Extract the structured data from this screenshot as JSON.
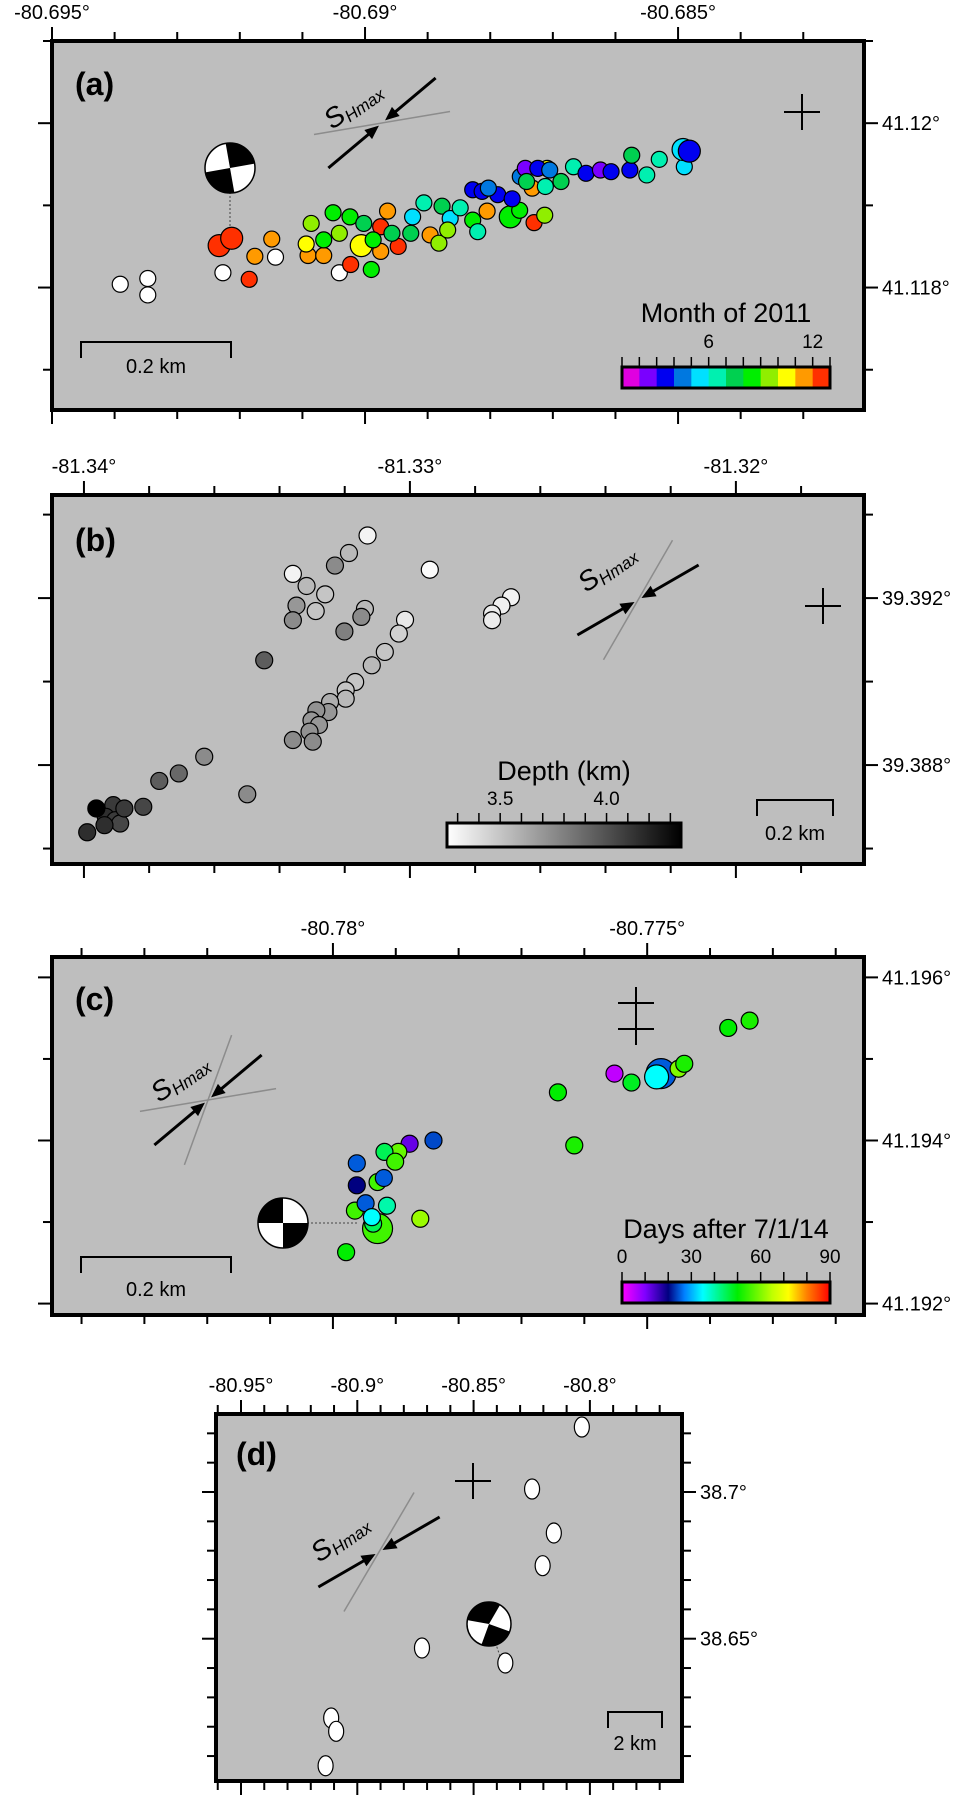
{
  "chart_data": [
    {
      "type": "scatter",
      "panel_label": "(a)",
      "xlim": [
        -80.695,
        -80.68203
      ],
      "ylim": [
        41.11651,
        41.121
      ],
      "x_ticks": {
        "major": [
          -80.695,
          -80.69,
          -80.685
        ],
        "labels": [
          "-80.695°",
          "-80.69°",
          "-80.685°"
        ],
        "minor_step": 0.001
      },
      "y_ticks": {
        "major": [
          41.12,
          41.118
        ],
        "labels": [
          "41.12°",
          "41.118°"
        ],
        "minor_step": 0.001
      },
      "color_by": "month",
      "colorbar": {
        "title": "Month of 2011",
        "range": [
          1,
          13
        ],
        "tick_values": [
          6,
          12
        ],
        "tick_labels": [
          "6",
          "12"
        ],
        "minor_step": 1,
        "segments": [
          "#e000e0",
          "#7a00ff",
          "#0000f0",
          "#0078e0",
          "#00e0ff",
          "#00f0b0",
          "#00d050",
          "#00ee00",
          "#90ee00",
          "#ffff00",
          "#ff9a00",
          "#ff3000"
        ]
      },
      "unassigned_color": "#ffffff",
      "scale_bar": "0.2 km",
      "shmax": {
        "main": "S",
        "sub": "Hmax"
      },
      "points": [
        [
          -80.69391,
          41.11804,
          null,
          0
        ],
        [
          -80.69347,
          41.11811,
          null,
          0
        ],
        [
          -80.69347,
          41.11791,
          null,
          0
        ],
        [
          -80.69227,
          41.11818,
          null,
          0
        ],
        [
          -80.69041,
          41.11818,
          null,
          0
        ],
        [
          -80.69143,
          41.11837,
          null,
          0
        ],
        [
          -80.69233,
          41.11851,
          12,
          1
        ],
        [
          -80.69213,
          41.1186,
          12,
          1
        ],
        [
          -80.69185,
          41.1181,
          12,
          0
        ],
        [
          -80.6873,
          41.11879,
          12,
          0
        ],
        [
          -80.69023,
          41.11828,
          12,
          0
        ],
        [
          -80.68975,
          41.11874,
          12,
          0
        ],
        [
          -80.68947,
          41.1185,
          12,
          0
        ],
        [
          -80.69149,
          41.11859,
          11,
          0
        ],
        [
          -80.69176,
          41.11838,
          11,
          0
        ],
        [
          -80.69091,
          41.11839,
          11,
          0
        ],
        [
          -80.69066,
          41.11839,
          11,
          0
        ],
        [
          -80.68964,
          41.11893,
          11,
          0
        ],
        [
          -80.68975,
          41.11844,
          11,
          0
        ],
        [
          -80.68896,
          41.11864,
          11,
          0
        ],
        [
          -80.68805,
          41.11893,
          11,
          0
        ],
        [
          -80.68733,
          41.11921,
          11,
          0
        ],
        [
          -80.69094,
          41.11853,
          10,
          0
        ],
        [
          -80.69006,
          41.11851,
          10,
          1
        ],
        [
          -80.68709,
          41.11945,
          10,
          0
        ],
        [
          -80.69051,
          41.11891,
          8,
          0
        ],
        [
          -80.69024,
          41.11886,
          8,
          0
        ],
        [
          -80.69086,
          41.11878,
          9,
          0
        ],
        [
          -80.69041,
          41.11866,
          9,
          0
        ],
        [
          -80.6899,
          41.11822,
          8,
          0
        ],
        [
          -80.69066,
          41.11858,
          8,
          0
        ],
        [
          -80.68927,
          41.11866,
          7,
          0
        ],
        [
          -80.68882,
          41.11854,
          9,
          0
        ],
        [
          -80.69002,
          41.11878,
          7,
          0
        ],
        [
          -80.68906,
          41.11903,
          6,
          0
        ],
        [
          -80.68924,
          41.11886,
          5,
          0
        ],
        [
          -80.68877,
          41.11899,
          7,
          0
        ],
        [
          -80.68864,
          41.11884,
          5,
          0
        ],
        [
          -80.68848,
          41.11897,
          6,
          0
        ],
        [
          -80.68828,
          41.11882,
          8,
          0
        ],
        [
          -80.6882,
          41.11868,
          6,
          0
        ],
        [
          -80.68768,
          41.11886,
          8,
          1
        ],
        [
          -80.68753,
          41.11894,
          8,
          0
        ],
        [
          -80.68713,
          41.11888,
          9,
          0
        ],
        [
          -80.68828,
          41.11919,
          3,
          0
        ],
        [
          -80.68813,
          41.11917,
          3,
          0
        ],
        [
          -80.68788,
          41.11913,
          3,
          0
        ],
        [
          -80.68765,
          41.11908,
          3,
          0
        ],
        [
          -80.68803,
          41.11921,
          4,
          0
        ],
        [
          -80.68752,
          41.11935,
          4,
          0
        ],
        [
          -80.68744,
          41.11945,
          2,
          0
        ],
        [
          -80.68724,
          41.11945,
          3,
          0
        ],
        [
          -80.68705,
          41.11943,
          4,
          0
        ],
        [
          -80.68687,
          41.11929,
          7,
          0
        ],
        [
          -80.68712,
          41.11923,
          6,
          0
        ],
        [
          -80.68742,
          41.11929,
          7,
          0
        ],
        [
          -80.68667,
          41.11947,
          6,
          0
        ],
        [
          -80.68647,
          41.11939,
          3,
          0
        ],
        [
          -80.68624,
          41.11943,
          2,
          0
        ],
        [
          -80.68607,
          41.11941,
          3,
          0
        ],
        [
          -80.68577,
          41.11943,
          3,
          0
        ],
        [
          -80.6855,
          41.11937,
          6,
          0
        ],
        [
          -80.68574,
          41.11961,
          7,
          0
        ],
        [
          -80.6853,
          41.11956,
          6,
          0
        ],
        [
          -80.6849,
          41.11947,
          5,
          0
        ],
        [
          -80.68492,
          41.11968,
          5,
          1
        ],
        [
          -80.68482,
          41.11966,
          3,
          1
        ],
        [
          -80.68957,
          41.11866,
          7,
          0
        ],
        [
          -80.68987,
          41.11858,
          8,
          0
        ],
        [
          -80.68868,
          41.1187,
          9,
          0
        ]
      ]
    },
    {
      "type": "scatter",
      "panel_label": "(b)",
      "xlim": [
        -81.34098,
        -81.31607
      ],
      "ylim": [
        39.38563,
        39.39447
      ],
      "x_ticks": {
        "major": [
          -81.34,
          -81.33,
          -81.32
        ],
        "labels": [
          "-81.34°",
          "-81.33°",
          "-81.32°"
        ],
        "minor_step": 0.002
      },
      "y_ticks": {
        "major": [
          39.392,
          39.388
        ],
        "labels": [
          "39.392°",
          "39.388°"
        ],
        "minor_step": 0.002
      },
      "color_by": "depth_km",
      "colorbar": {
        "title": "Depth (km)",
        "range": [
          3.25,
          4.35
        ],
        "tick_values": [
          3.5,
          4.0
        ],
        "tick_labels": [
          "3.5",
          "4.0"
        ],
        "minor_step": 0.1,
        "gradient": [
          "#ffffff",
          "#000000"
        ]
      },
      "scale_bar": "0.2 km",
      "shmax": {
        "main": "S",
        "sub": "Hmax"
      },
      "points": [
        [
          -81.3313,
          39.3935,
          3.3
        ],
        [
          -81.33359,
          39.39258,
          3.3
        ],
        [
          -81.32939,
          39.39268,
          3.27
        ],
        [
          -81.3269,
          39.39202,
          3.3
        ],
        [
          -81.32719,
          39.39182,
          3.32
        ],
        [
          -81.32748,
          39.39163,
          3.33
        ],
        [
          -81.32748,
          39.39147,
          3.33
        ],
        [
          -81.33015,
          39.39148,
          3.35
        ],
        [
          -81.33187,
          39.39308,
          3.55
        ],
        [
          -81.33317,
          39.39229,
          3.55
        ],
        [
          -81.3326,
          39.39209,
          3.5
        ],
        [
          -81.33138,
          39.39174,
          3.55
        ],
        [
          -81.33289,
          39.39169,
          3.5
        ],
        [
          -81.33034,
          39.39115,
          3.45
        ],
        [
          -81.33077,
          39.39071,
          3.5
        ],
        [
          -81.33117,
          39.39039,
          3.55
        ],
        [
          -81.33168,
          39.38999,
          3.5
        ],
        [
          -81.33197,
          39.38979,
          3.5
        ],
        [
          -81.33197,
          39.38959,
          3.55
        ],
        [
          -81.33245,
          39.38951,
          3.6
        ],
        [
          -81.3323,
          39.39278,
          3.75
        ],
        [
          -81.33348,
          39.39182,
          3.7
        ],
        [
          -81.33359,
          39.39147,
          3.75
        ],
        [
          -81.33149,
          39.39155,
          3.75
        ],
        [
          -81.33201,
          39.3912,
          3.8
        ],
        [
          -81.3325,
          39.38927,
          3.7
        ],
        [
          -81.33287,
          39.38931,
          3.72
        ],
        [
          -81.33302,
          39.38907,
          3.7
        ],
        [
          -81.33279,
          39.38896,
          3.7
        ],
        [
          -81.33308,
          39.3888,
          3.72
        ],
        [
          -81.33359,
          39.3886,
          3.75
        ],
        [
          -81.33298,
          39.38856,
          3.75
        ],
        [
          -81.33499,
          39.3873,
          3.75
        ],
        [
          -81.33631,
          39.3882,
          3.75
        ],
        [
          -81.33447,
          39.39051,
          3.95
        ],
        [
          -81.33709,
          39.3878,
          3.9
        ],
        [
          -81.33769,
          39.38762,
          3.95
        ],
        [
          -81.33818,
          39.387,
          4.05
        ],
        [
          -81.3391,
          39.38704,
          4.1
        ],
        [
          -81.33933,
          39.38676,
          4.15
        ],
        [
          -81.33904,
          39.38668,
          4.1
        ],
        [
          -81.33889,
          39.3866,
          4.05
        ],
        [
          -81.3399,
          39.38639,
          4.15
        ],
        [
          -81.33876,
          39.38696,
          4.1
        ],
        [
          -81.33937,
          39.38656,
          4.15
        ],
        [
          -81.33962,
          39.38696,
          4.35
        ]
      ]
    },
    {
      "type": "scatter",
      "panel_label": "(c)",
      "xlim": [
        -80.78447,
        -80.77155
      ],
      "ylim": [
        41.19186,
        41.19625
      ],
      "x_ticks": {
        "major": [
          -80.78,
          -80.775
        ],
        "labels": [
          "-80.78°",
          "-80.775°"
        ],
        "minor_step": 0.001
      },
      "y_ticks": {
        "major": [
          41.196,
          41.194,
          41.192
        ],
        "labels": [
          "41.196°",
          "41.194°",
          "41.192°"
        ],
        "minor_step": 0.001
      },
      "color_by": "days_after_2014-07-01",
      "colorbar": {
        "title": "Days after 7/1/14",
        "range": [
          0,
          90
        ],
        "tick_values": [
          0,
          30,
          60,
          90
        ],
        "tick_labels": [
          "0",
          "30",
          "60",
          "90"
        ],
        "minor_step": 10,
        "stops": [
          [
            0,
            "#ff00ff"
          ],
          [
            10,
            "#8000ff"
          ],
          [
            20,
            "#000080"
          ],
          [
            27,
            "#0080ff"
          ],
          [
            35,
            "#00ffff"
          ],
          [
            50,
            "#00ee00"
          ],
          [
            65,
            "#c0ff00"
          ],
          [
            72,
            "#ffff00"
          ],
          [
            80,
            "#ff8000"
          ],
          [
            90,
            "#ff0000"
          ]
        ]
      },
      "scale_bar": "0.2 km",
      "shmax": {
        "main": "S",
        "sub": "Hmax"
      },
      "points": [
        [
          -80.77552,
          41.19482,
          5,
          0
        ],
        [
          -80.77525,
          41.19471,
          48,
          0
        ],
        [
          -80.77478,
          41.19482,
          25,
          2
        ],
        [
          -80.77485,
          41.19478,
          35,
          1
        ],
        [
          -80.7745,
          41.19488,
          60,
          0
        ],
        [
          -80.77441,
          41.19494,
          52,
          0
        ],
        [
          -80.77642,
          41.19459,
          50,
          0
        ],
        [
          -80.77616,
          41.19394,
          52,
          0
        ],
        [
          -80.77371,
          41.19538,
          50,
          0
        ],
        [
          -80.77337,
          41.19547,
          52,
          0
        ],
        [
          -80.7784,
          41.194,
          24,
          0
        ],
        [
          -80.77878,
          41.19396,
          12,
          0
        ],
        [
          -80.77896,
          41.19386,
          58,
          0
        ],
        [
          -80.77918,
          41.19386,
          45,
          0
        ],
        [
          -80.77901,
          41.19374,
          55,
          0
        ],
        [
          -80.77962,
          41.19372,
          25,
          0
        ],
        [
          -80.77929,
          41.19349,
          55,
          0
        ],
        [
          -80.77919,
          41.19354,
          25,
          0
        ],
        [
          -80.77962,
          41.19345,
          20,
          0
        ],
        [
          -80.77965,
          41.19314,
          55,
          0
        ],
        [
          -80.77914,
          41.1932,
          40,
          0
        ],
        [
          -80.77929,
          41.19292,
          55,
          2
        ],
        [
          -80.77936,
          41.19298,
          45,
          0
        ],
        [
          -80.77948,
          41.19323,
          25,
          0
        ],
        [
          -80.77938,
          41.19306,
          35,
          0
        ],
        [
          -80.77861,
          41.19304,
          62,
          0
        ],
        [
          -80.77979,
          41.19263,
          50,
          0
        ]
      ]
    },
    {
      "type": "scatter",
      "panel_label": "(d)",
      "xlim": [
        -80.96075,
        -80.7604
      ],
      "ylim": [
        38.6015,
        38.72659
      ],
      "x_ticks": {
        "major": [
          -80.95,
          -80.9,
          -80.85,
          -80.8
        ],
        "labels": [
          "-80.95°",
          "-80.9°",
          "-80.85°",
          "-80.8°"
        ],
        "minor_step": 0.01
      },
      "y_ticks": {
        "major": [
          38.7,
          38.65
        ],
        "labels": [
          "38.7°",
          "38.65°"
        ],
        "minor_step": 0.01
      },
      "scale_bar": "2 km",
      "shmax": {
        "main": "S",
        "sub": "Hmax"
      },
      "points": [
        [
          -80.80346,
          38.72215
        ],
        [
          -80.82486,
          38.70102
        ],
        [
          -80.8155,
          38.68603
        ],
        [
          -80.82031,
          38.67489
        ],
        [
          -80.87219,
          38.64684
        ],
        [
          -80.83636,
          38.64172
        ],
        [
          -80.91123,
          38.62298
        ],
        [
          -80.90909,
          38.61843
        ],
        [
          -80.91363,
          38.6067
        ]
      ]
    }
  ],
  "style": {
    "panel_fill": "#bebebe",
    "frame_color": "#000000",
    "guide_line_color": "#8c8c8c"
  }
}
